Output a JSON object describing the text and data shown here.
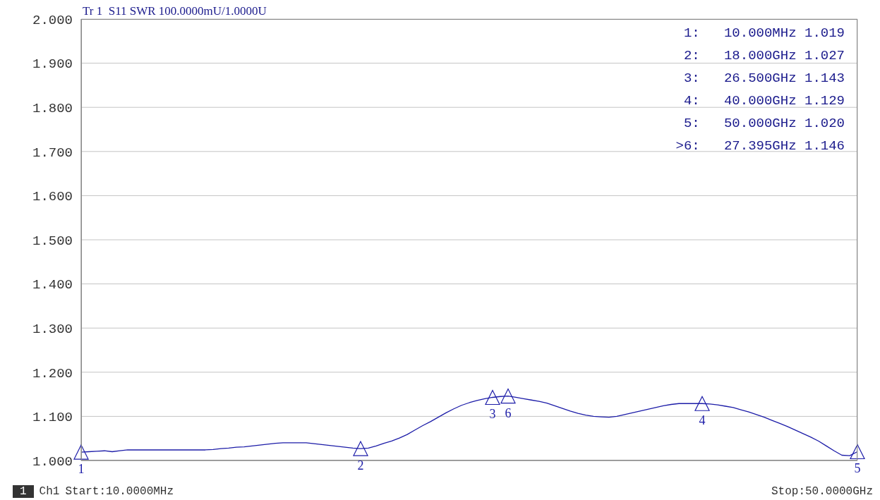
{
  "chart_data": {
    "type": "line",
    "title": "Tr 1  S11 SWR 100.0000mU/1.0000U",
    "categories": [
      null,
      null,
      null,
      null,
      null,
      null,
      null,
      null,
      null,
      null,
      null,
      null,
      null,
      null,
      null,
      null,
      null,
      null,
      null,
      null,
      null,
      null,
      null,
      null,
      null,
      null,
      null,
      null,
      null,
      null,
      null,
      null,
      null,
      null,
      null,
      null,
      null,
      null,
      null,
      null,
      null,
      null,
      null,
      null,
      null,
      null,
      null,
      null,
      null,
      null,
      null,
      null,
      null,
      null,
      null,
      null,
      null,
      null,
      null,
      null,
      null,
      null,
      null,
      null,
      null,
      null,
      null,
      null,
      null,
      null,
      null,
      null,
      null,
      null,
      null,
      null,
      null,
      null,
      null,
      null,
      null,
      null,
      null,
      null,
      null,
      null,
      null,
      null,
      null,
      null,
      null,
      null,
      null,
      null,
      null,
      null,
      null,
      null,
      null,
      null,
      null
    ],
    "ylim": [
      1,
      2
    ],
    "yticks": [
      {
        "value": 1,
        "label": "1.000"
      },
      {
        "value": 1.1,
        "label": "1.100"
      },
      {
        "value": 1.2,
        "label": "1.200"
      },
      {
        "value": 1.3,
        "label": "1.300"
      },
      {
        "value": 1.4,
        "label": "1.400"
      },
      {
        "value": 1.5,
        "label": "1.500"
      },
      {
        "value": 1.6,
        "label": "1.600"
      },
      {
        "value": 1.7,
        "label": "1.700"
      },
      {
        "value": 1.8,
        "label": "1.800"
      },
      {
        "value": 1.9,
        "label": "1.900"
      },
      {
        "value": 2,
        "label": "2.000"
      }
    ],
    "tick_labels": "y",
    "grid": true,
    "line_style": "solid",
    "series": [
      {
        "marker": "none",
        "color": "#1c1ca8",
        "values": [
          1.019,
          1.02,
          1.021,
          1.022,
          1.02,
          1.022,
          1.024,
          1.024,
          1.024,
          1.024,
          1.024,
          1.024,
          1.024,
          1.024,
          1.024,
          1.024,
          1.024,
          1.025,
          1.027,
          1.028,
          1.03,
          1.031,
          1.033,
          1.035,
          1.037,
          1.039,
          1.04,
          1.04,
          1.04,
          1.04,
          1.038,
          1.036,
          1.034,
          1.032,
          1.03,
          1.028,
          1.027,
          1.028,
          1.033,
          1.039,
          1.044,
          1.051,
          1.059,
          1.069,
          1.079,
          1.088,
          1.098,
          1.108,
          1.117,
          1.125,
          1.131,
          1.136,
          1.14,
          1.143,
          1.145,
          1.146,
          1.143,
          1.14,
          1.137,
          1.134,
          1.13,
          1.124,
          1.118,
          1.112,
          1.107,
          1.103,
          1.1,
          1.099,
          1.098,
          1.1,
          1.104,
          1.108,
          1.112,
          1.116,
          1.12,
          1.124,
          1.127,
          1.129,
          1.129,
          1.129,
          1.129,
          1.128,
          1.126,
          1.123,
          1.12,
          1.115,
          1.11,
          1.104,
          1.098,
          1.091,
          1.084,
          1.077,
          1.069,
          1.061,
          1.053,
          1.044,
          1.033,
          1.022,
          1.012,
          1.011,
          1.02
        ]
      },
      {
        "type": "scatter",
        "marker": "triangle",
        "color": "#1c1ca8",
        "values": [
          1.019,
          null,
          null,
          null,
          null,
          null,
          null,
          null,
          null,
          null,
          null,
          null,
          null,
          null,
          null,
          null,
          null,
          null,
          null,
          null,
          null,
          null,
          null,
          null,
          null,
          null,
          null,
          null,
          null,
          null,
          null,
          null,
          null,
          null,
          null,
          null,
          1.027,
          null,
          null,
          null,
          null,
          null,
          null,
          null,
          null,
          null,
          null,
          null,
          null,
          null,
          null,
          null,
          null,
          1.143,
          null,
          1.146,
          null,
          null,
          null,
          null,
          null,
          null,
          null,
          null,
          null,
          null,
          null,
          null,
          null,
          null,
          null,
          null,
          null,
          null,
          null,
          null,
          null,
          null,
          null,
          null,
          1.129,
          null,
          null,
          null,
          null,
          null,
          null,
          null,
          null,
          null,
          null,
          null,
          null,
          null,
          null,
          null,
          null,
          null,
          null,
          null,
          1.02
        ]
      }
    ],
    "annotations": [
      "1",
      "2",
      "3",
      "6",
      "4",
      "5",
      "1:   10.000MHz 1.019",
      "2:   18.000GHz 1.027",
      "3:   26.500GHz 1.143",
      "4:   40.000GHz 1.129",
      "5:   50.000GHz 1.020",
      ">6:   27.395GHz 1.146",
      "1",
      "Ch1",
      "Start:10.0000MHz",
      "Stop:50.0000GHz"
    ]
  }
}
